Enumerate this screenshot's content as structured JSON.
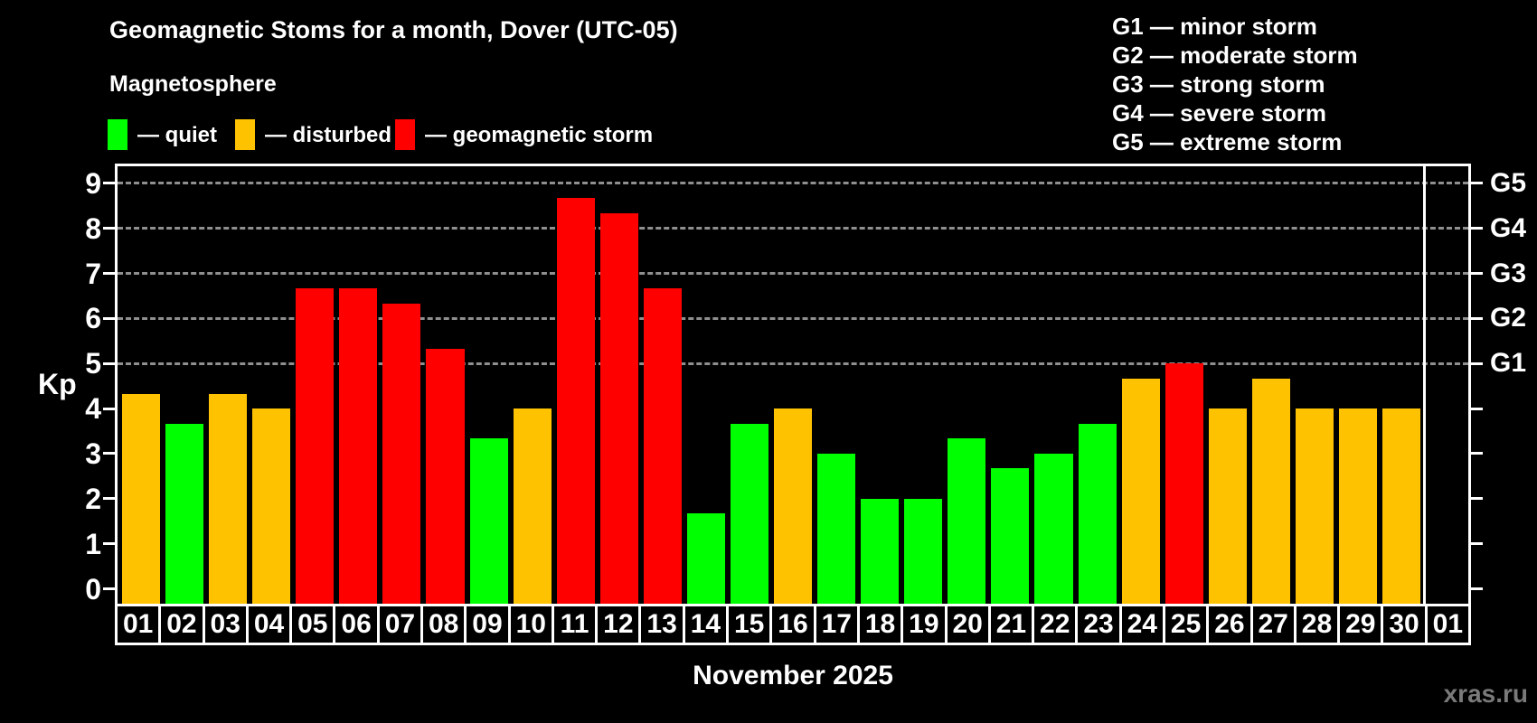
{
  "header": {
    "title": "Geomagnetic Stoms for a month, Dover (UTC-05)",
    "subtitle": "Magnetosphere"
  },
  "legend": {
    "items": [
      {
        "key": "quiet",
        "label": "— quiet",
        "color": "#00ff00"
      },
      {
        "key": "disturbed",
        "label": "— disturbed",
        "color": "#ffc200"
      },
      {
        "key": "storm",
        "label": "— geomagnetic storm",
        "color": "#ff0000"
      }
    ]
  },
  "storm_scale": {
    "items": [
      {
        "label": "G1 — minor storm"
      },
      {
        "label": "G2 — moderate storm"
      },
      {
        "label": "G3 — strong storm"
      },
      {
        "label": "G4 — severe storm"
      },
      {
        "label": "G5 — extreme storm"
      }
    ]
  },
  "chart_data": {
    "type": "bar",
    "title": "Geomagnetic Stoms for a month, Dover (UTC-05)",
    "xlabel": "November 2025",
    "ylabel": "Kp",
    "ylim": [
      0,
      9
    ],
    "grid": "dashed horizontal at Kp 5-9",
    "legend_position": "top",
    "yticks": [
      "0",
      "1",
      "2",
      "3",
      "4",
      "5",
      "6",
      "7",
      "8",
      "9"
    ],
    "gridlines_at": [
      5,
      6,
      7,
      8,
      9
    ],
    "right_axis": [
      {
        "kp": 5,
        "label": "G1"
      },
      {
        "kp": 6,
        "label": "G2"
      },
      {
        "kp": 7,
        "label": "G3"
      },
      {
        "kp": 8,
        "label": "G4"
      },
      {
        "kp": 9,
        "label": "G5"
      }
    ],
    "categories": [
      "01",
      "02",
      "03",
      "04",
      "05",
      "06",
      "07",
      "08",
      "09",
      "10",
      "11",
      "12",
      "13",
      "14",
      "15",
      "16",
      "17",
      "18",
      "19",
      "20",
      "21",
      "22",
      "23",
      "24",
      "25",
      "26",
      "27",
      "28",
      "29",
      "30",
      "01"
    ],
    "values": [
      4.33,
      3.67,
      4.33,
      4.0,
      6.67,
      6.67,
      6.33,
      5.33,
      3.33,
      4.0,
      8.67,
      8.33,
      6.67,
      1.67,
      3.67,
      4.0,
      3.0,
      2.0,
      2.0,
      3.33,
      2.67,
      3.0,
      3.67,
      4.67,
      5.0,
      4.0,
      4.67,
      4.0,
      4.0,
      4.0,
      null
    ],
    "statuses": [
      "disturbed",
      "quiet",
      "disturbed",
      "disturbed",
      "storm",
      "storm",
      "storm",
      "storm",
      "quiet",
      "disturbed",
      "storm",
      "storm",
      "storm",
      "quiet",
      "quiet",
      "disturbed",
      "quiet",
      "quiet",
      "quiet",
      "quiet",
      "quiet",
      "quiet",
      "quiet",
      "disturbed",
      "storm",
      "disturbed",
      "disturbed",
      "disturbed",
      "disturbed",
      "disturbed",
      null
    ]
  },
  "colors": {
    "quiet": "#00ff00",
    "disturbed": "#ffc200",
    "storm": "#ff0000",
    "grid": "#a8a8a8",
    "axis": "#ffffff",
    "background": "#000000",
    "watermark": "#7a7a7a"
  },
  "watermark": "xras.ru"
}
